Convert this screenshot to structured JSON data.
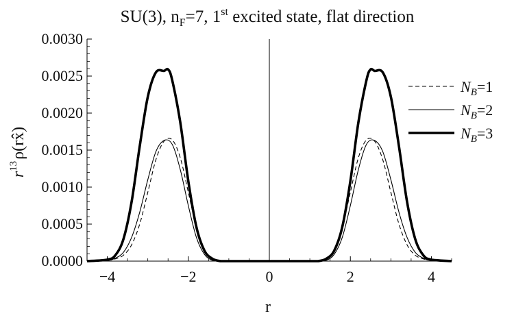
{
  "chart_data": {
    "type": "line",
    "title": "SU(3), n_F=7, 1^st excited state, flat direction",
    "title_parts": {
      "main": "SU(3), n",
      "sub": "F",
      "eq": "=7, 1",
      "sup": "st",
      "rest": " excited state, flat direction"
    },
    "xlabel": "r",
    "ylabel": "r^13 ρ(rx̂)",
    "ylabel_parts": {
      "r": "r",
      "exp": "13",
      "rho": "ρ(r",
      "xhat": "x̂",
      "close": ")"
    },
    "xlim": [
      -4.5,
      4.5
    ],
    "ylim": [
      0,
      0.003
    ],
    "x_ticks": [
      -4,
      -2,
      0,
      2,
      4
    ],
    "x_tick_labels": [
      "−4",
      "−2",
      "0",
      "2",
      "4"
    ],
    "y_ticks": [
      0,
      0.0005,
      0.001,
      0.0015,
      0.002,
      0.0025,
      0.003
    ],
    "y_tick_labels": [
      "0.0000",
      "0.0005",
      "0.0010",
      "0.0015",
      "0.0020",
      "0.0025",
      "0.0030"
    ],
    "grid": false,
    "legend_position": "right",
    "series": [
      {
        "name": "N_B=1",
        "label_main": "N",
        "label_sub": "B",
        "label_rest": "=1",
        "style": "dashed",
        "x": [
          -4.5,
          -4.0,
          -3.8,
          -3.6,
          -3.4,
          -3.2,
          -3.0,
          -2.8,
          -2.6,
          -2.4,
          -2.2,
          -2.0,
          -1.8,
          -1.6,
          -1.4,
          -1.2,
          -1.0,
          -0.5,
          0,
          0.5,
          1.0,
          1.2,
          1.4,
          1.6,
          1.8,
          2.0,
          2.2,
          2.4,
          2.6,
          2.8,
          3.0,
          3.2,
          3.4,
          3.6,
          3.8,
          4.0,
          4.5
        ],
        "y": [
          0,
          1e-05,
          3e-05,
          8e-05,
          0.00022,
          0.0005,
          0.00093,
          0.00137,
          0.00162,
          0.00164,
          0.0014,
          0.00093,
          0.00045,
          0.00014,
          2e-05,
          0,
          0,
          0,
          0,
          0,
          0,
          0,
          2e-05,
          0.00014,
          0.00045,
          0.00093,
          0.0014,
          0.00164,
          0.00162,
          0.00137,
          0.00093,
          0.0005,
          0.00022,
          8e-05,
          3e-05,
          1e-05,
          0
        ]
      },
      {
        "name": "N_B=2",
        "label_main": "N",
        "label_sub": "B",
        "label_rest": "=2",
        "style": "thin",
        "x": [
          -4.5,
          -4.0,
          -3.8,
          -3.6,
          -3.4,
          -3.2,
          -3.0,
          -2.8,
          -2.6,
          -2.4,
          -2.2,
          -2.0,
          -1.8,
          -1.6,
          -1.4,
          -1.2,
          -1.0,
          -0.5,
          0,
          0.5,
          1.0,
          1.2,
          1.4,
          1.6,
          1.8,
          2.0,
          2.2,
          2.4,
          2.6,
          2.8,
          3.0,
          3.2,
          3.4,
          3.6,
          3.8,
          4.0,
          4.5
        ],
        "y": [
          0,
          1e-05,
          4e-05,
          0.00012,
          0.00032,
          0.00066,
          0.0011,
          0.00148,
          0.00163,
          0.00158,
          0.00124,
          0.00075,
          0.00032,
          9e-05,
          1e-05,
          0,
          0,
          0,
          0,
          0,
          0,
          0,
          1e-05,
          9e-05,
          0.00032,
          0.00075,
          0.00124,
          0.00158,
          0.00163,
          0.00148,
          0.0011,
          0.00066,
          0.00032,
          0.00012,
          4e-05,
          1e-05,
          0
        ]
      },
      {
        "name": "N_B=3",
        "label_main": "N",
        "label_sub": "B",
        "label_rest": "=3",
        "style": "thick",
        "x": [
          -4.5,
          -4.0,
          -3.8,
          -3.6,
          -3.4,
          -3.2,
          -3.0,
          -2.8,
          -2.6,
          -2.5,
          -2.4,
          -2.2,
          -2.0,
          -1.8,
          -1.6,
          -1.4,
          -1.2,
          -1.0,
          -0.5,
          0,
          0.5,
          1.0,
          1.2,
          1.4,
          1.6,
          1.8,
          2.0,
          2.2,
          2.4,
          2.5,
          2.6,
          2.8,
          3.0,
          3.2,
          3.4,
          3.6,
          3.8,
          4.0,
          4.5
        ],
        "y": [
          0,
          2e-05,
          8e-05,
          0.0003,
          0.0008,
          0.00155,
          0.00222,
          0.00255,
          0.00257,
          0.00259,
          0.00245,
          0.00188,
          0.00108,
          0.00046,
          0.00014,
          3e-05,
          0,
          0,
          0,
          0,
          0,
          0,
          0,
          3e-05,
          0.00014,
          0.00046,
          0.00108,
          0.00188,
          0.00245,
          0.00259,
          0.00257,
          0.00255,
          0.00222,
          0.00155,
          0.0008,
          0.0003,
          8e-05,
          2e-05,
          0
        ]
      }
    ]
  }
}
